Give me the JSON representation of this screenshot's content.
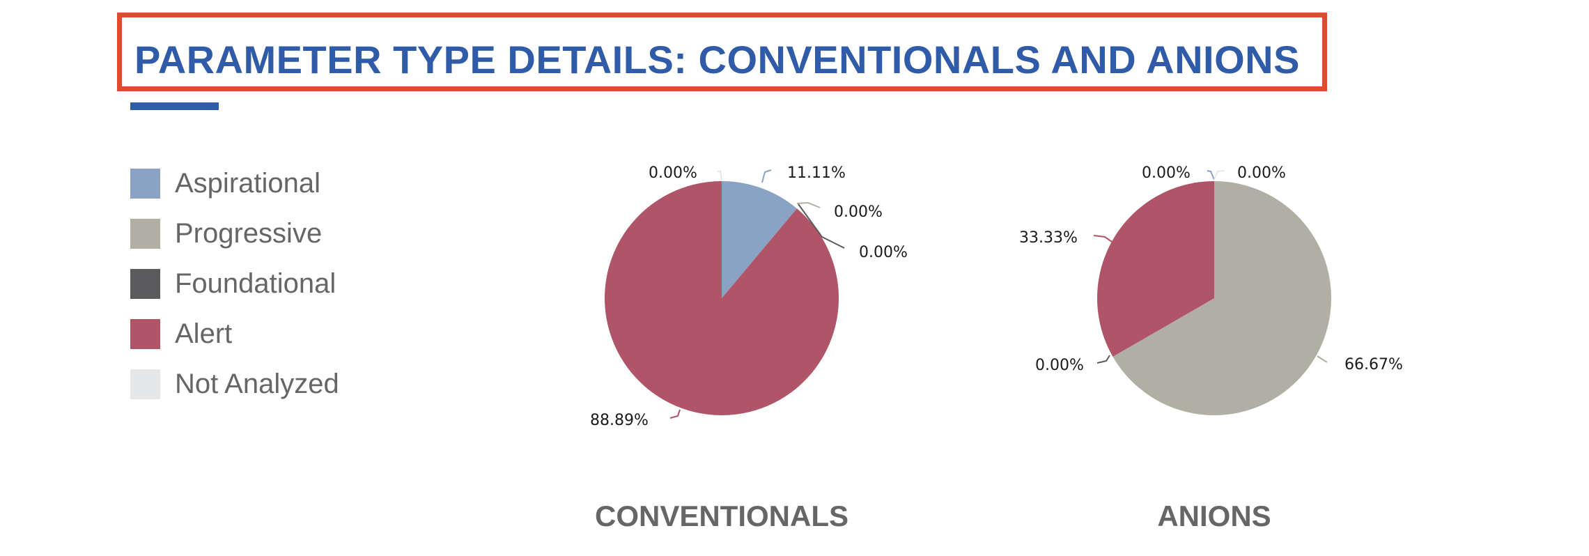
{
  "header": {
    "title": "PARAMETER TYPE DETAILS: CONVENTIONALS AND ANIONS"
  },
  "legend": [
    {
      "label": "Aspirational",
      "color": "#8aa3c4"
    },
    {
      "label": "Progressive",
      "color": "#b1afa4"
    },
    {
      "label": "Foundational",
      "color": "#5a5a5d"
    },
    {
      "label": "Alert",
      "color": "#b05467"
    },
    {
      "label": "Not Analyzed",
      "color": "#e6e7e8"
    }
  ],
  "chart_data": [
    {
      "type": "pie",
      "title": "CONVENTIONALS",
      "categories": [
        "Aspirational",
        "Progressive",
        "Foundational",
        "Alert",
        "Not Analyzed"
      ],
      "values": [
        11.11,
        0.0,
        0.0,
        88.89,
        0.0
      ],
      "labels": [
        "11.11%",
        "0.00%",
        "0.00%",
        "88.89%",
        "0.00%"
      ],
      "legend": "left"
    },
    {
      "type": "pie",
      "title": "ANIONS",
      "categories": [
        "Aspirational",
        "Progressive",
        "Foundational",
        "Alert",
        "Not Analyzed"
      ],
      "values": [
        0.0,
        66.67,
        0.0,
        33.33,
        0.0
      ],
      "labels": [
        "0.00%",
        "66.67%",
        "0.00%",
        "33.33%",
        "0.00%"
      ],
      "legend": "left"
    }
  ]
}
